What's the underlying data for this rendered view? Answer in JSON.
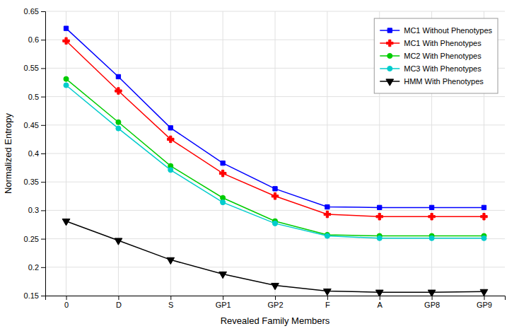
{
  "chart_data": {
    "type": "line",
    "xlabel": "Revealed Family Members",
    "ylabel": "Normalized Entropy",
    "categories": [
      "0",
      "D",
      "S",
      "GP1",
      "GP2",
      "F",
      "A",
      "GP8",
      "GP9"
    ],
    "series": [
      {
        "name": "MC1 Without Phenotypes",
        "color": "#0000ff",
        "marker": "square",
        "values": [
          0.62,
          0.535,
          0.445,
          0.383,
          0.338,
          0.306,
          0.305,
          0.305,
          0.305
        ]
      },
      {
        "name": "MC1 With Phenotypes",
        "color": "#ff0000",
        "marker": "plus",
        "values": [
          0.598,
          0.51,
          0.425,
          0.365,
          0.325,
          0.293,
          0.289,
          0.289,
          0.289
        ]
      },
      {
        "name": "MC2 With Phenotypes",
        "color": "#00cc00",
        "marker": "circle",
        "values": [
          0.531,
          0.455,
          0.378,
          0.322,
          0.281,
          0.257,
          0.255,
          0.255,
          0.255
        ]
      },
      {
        "name": "MC3 With Phenotypes",
        "color": "#00cccc",
        "marker": "circle",
        "values": [
          0.52,
          0.444,
          0.371,
          0.314,
          0.277,
          0.255,
          0.251,
          0.251,
          0.251
        ]
      },
      {
        "name": "HMM With Phenotypes",
        "color": "#000000",
        "marker": "triangle-down",
        "values": [
          0.281,
          0.247,
          0.213,
          0.188,
          0.168,
          0.158,
          0.156,
          0.156,
          0.157
        ]
      }
    ],
    "ylim": [
      0.15,
      0.65
    ],
    "yticks": [
      0.15,
      0.2,
      0.25,
      0.3,
      0.35,
      0.4,
      0.45,
      0.5,
      0.55,
      0.6,
      0.65
    ],
    "grid": true,
    "legend": "upper right"
  }
}
